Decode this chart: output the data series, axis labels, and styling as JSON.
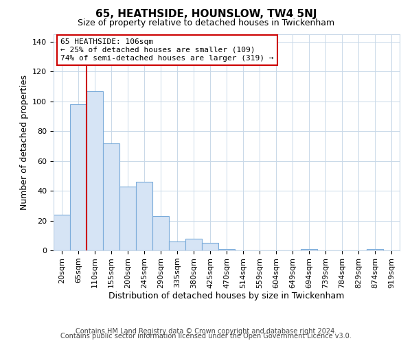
{
  "title": "65, HEATHSIDE, HOUNSLOW, TW4 5NJ",
  "subtitle": "Size of property relative to detached houses in Twickenham",
  "xlabel": "Distribution of detached houses by size in Twickenham",
  "ylabel": "Number of detached properties",
  "bar_labels": [
    "20sqm",
    "65sqm",
    "110sqm",
    "155sqm",
    "200sqm",
    "245sqm",
    "290sqm",
    "335sqm",
    "380sqm",
    "425sqm",
    "470sqm",
    "514sqm",
    "559sqm",
    "604sqm",
    "649sqm",
    "694sqm",
    "739sqm",
    "784sqm",
    "829sqm",
    "874sqm",
    "919sqm"
  ],
  "bar_values": [
    24,
    98,
    107,
    72,
    43,
    46,
    23,
    6,
    8,
    5,
    1,
    0,
    0,
    0,
    0,
    1,
    0,
    0,
    0,
    1,
    0
  ],
  "bar_color": "#d6e4f5",
  "bar_edge_color": "#7aabda",
  "vline_color": "#cc0000",
  "vline_x_index": 2,
  "ylim": [
    0,
    145
  ],
  "yticks": [
    0,
    20,
    40,
    60,
    80,
    100,
    120,
    140
  ],
  "annotation_line1": "65 HEATHSIDE: 106sqm",
  "annotation_line2": "← 25% of detached houses are smaller (109)",
  "annotation_line3": "74% of semi-detached houses are larger (319) →",
  "annotation_box_color": "#ffffff",
  "annotation_box_edge": "#cc0000",
  "footer_line1": "Contains HM Land Registry data © Crown copyright and database right 2024.",
  "footer_line2": "Contains public sector information licensed under the Open Government Licence v3.0.",
  "background_color": "#ffffff",
  "grid_color": "#c8d8e8",
  "title_fontsize": 11,
  "subtitle_fontsize": 9,
  "axis_label_fontsize": 9,
  "tick_fontsize": 8,
  "annotation_fontsize": 8,
  "footer_fontsize": 7
}
